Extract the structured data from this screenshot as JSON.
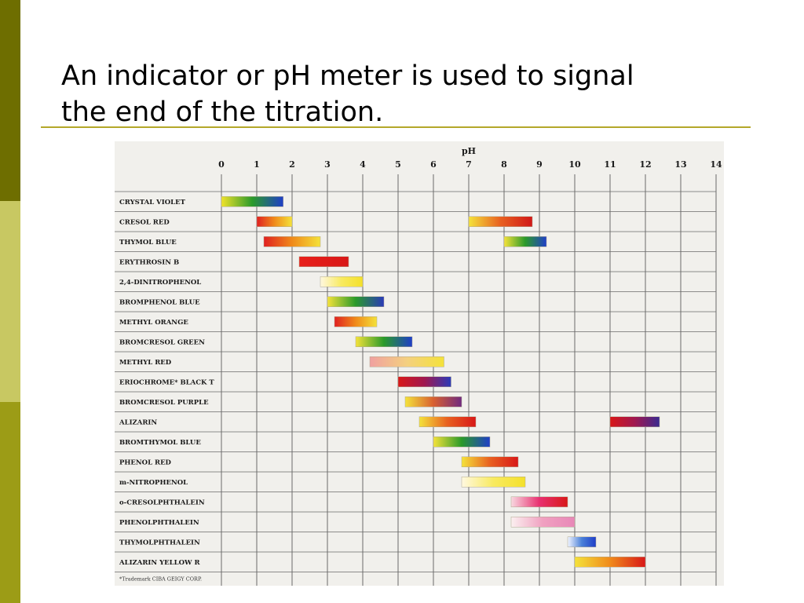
{
  "slide": {
    "title": "An indicator or pH meter is used to signal\nthe end of the titration."
  },
  "colors": {
    "sidebar": [
      "#6e6e00",
      "#c8c862",
      "#9c9c16"
    ],
    "rule": "#b4a82a",
    "grid": "#6a6a6a",
    "photo_bg": "#f1f0ec"
  },
  "chart_data": {
    "type": "range-bar",
    "xlabel": "pH",
    "xlim": [
      0,
      14
    ],
    "x_ticks": [
      0,
      1,
      2,
      3,
      4,
      5,
      6,
      7,
      8,
      9,
      10,
      11,
      12,
      13,
      14
    ],
    "footnote": "*Trademark CIBA GEIGY CORP.",
    "indicators": [
      {
        "name": "CRYSTAL VIOLET",
        "ranges": [
          {
            "from": 0.0,
            "to": 1.75,
            "colors": [
              "#f0e22a",
              "#2a9a2a",
              "#1f3ec8"
            ]
          }
        ]
      },
      {
        "name": "CRESOL RED",
        "ranges": [
          {
            "from": 1.0,
            "to": 2.0,
            "colors": [
              "#e02020",
              "#f08a1a",
              "#f4e23a"
            ]
          },
          {
            "from": 7.0,
            "to": 8.8,
            "colors": [
              "#f4e23a",
              "#e86020",
              "#d01818"
            ]
          }
        ]
      },
      {
        "name": "THYMOL BLUE",
        "ranges": [
          {
            "from": 1.2,
            "to": 2.8,
            "colors": [
              "#e02020",
              "#f08a1a",
              "#f4e23a"
            ]
          },
          {
            "from": 8.0,
            "to": 9.2,
            "colors": [
              "#f4e23a",
              "#2a9a2a",
              "#1f3ec8"
            ]
          }
        ]
      },
      {
        "name": "ERYTHROSIN B",
        "ranges": [
          {
            "from": 2.2,
            "to": 3.6,
            "colors": [
              "#e8201a",
              "#d81818"
            ]
          }
        ]
      },
      {
        "name": "2,4-DINITROPHENOL",
        "ranges": [
          {
            "from": 2.8,
            "to": 4.0,
            "colors": [
              "#fff8e0",
              "#f8ea60",
              "#f4e02a"
            ]
          }
        ]
      },
      {
        "name": "BROMPHENOL BLUE",
        "ranges": [
          {
            "from": 3.0,
            "to": 4.6,
            "colors": [
              "#f4e23a",
              "#2a9a2a",
              "#2a3ab8"
            ]
          }
        ]
      },
      {
        "name": "METHYL ORANGE",
        "ranges": [
          {
            "from": 3.2,
            "to": 4.4,
            "colors": [
              "#e02020",
              "#f08a1a",
              "#f4e23a"
            ]
          }
        ]
      },
      {
        "name": "BROMCRESOL GREEN",
        "ranges": [
          {
            "from": 3.8,
            "to": 5.4,
            "colors": [
              "#f4e23a",
              "#2a9a2a",
              "#1f3ec8"
            ]
          }
        ]
      },
      {
        "name": "METHYL RED",
        "ranges": [
          {
            "from": 4.2,
            "to": 6.3,
            "colors": [
              "#f0a0a0",
              "#f4d080",
              "#f4e23a"
            ]
          }
        ]
      },
      {
        "name": "ERIOCHROME* BLACK T",
        "ranges": [
          {
            "from": 5.0,
            "to": 6.5,
            "colors": [
              "#d81818",
              "#a01850",
              "#2a3ab8"
            ]
          }
        ]
      },
      {
        "name": "BROMCRESOL PURPLE",
        "ranges": [
          {
            "from": 5.2,
            "to": 6.8,
            "colors": [
              "#f4e23a",
              "#d86030",
              "#702a80"
            ]
          }
        ]
      },
      {
        "name": "ALIZARIN",
        "ranges": [
          {
            "from": 5.6,
            "to": 7.2,
            "colors": [
              "#f4e23a",
              "#e86020",
              "#d81818"
            ]
          },
          {
            "from": 11.0,
            "to": 12.4,
            "colors": [
              "#d81818",
              "#a01850",
              "#3a2a90"
            ]
          }
        ]
      },
      {
        "name": "BROMTHYMOL BLUE",
        "ranges": [
          {
            "from": 6.0,
            "to": 7.6,
            "colors": [
              "#f4e23a",
              "#2a9a2a",
              "#1f3ec8"
            ]
          }
        ]
      },
      {
        "name": "PHENOL RED",
        "ranges": [
          {
            "from": 6.8,
            "to": 8.4,
            "colors": [
              "#f4e23a",
              "#e86020",
              "#d81818"
            ]
          }
        ]
      },
      {
        "name": "m-NITROPHENOL",
        "ranges": [
          {
            "from": 6.8,
            "to": 8.6,
            "colors": [
              "#fff8e0",
              "#f8ea60",
              "#f4e02a"
            ]
          }
        ]
      },
      {
        "name": "o-CRESOLPHTHALEIN",
        "ranges": [
          {
            "from": 8.2,
            "to": 9.8,
            "colors": [
              "#f8d8e0",
              "#e83070",
              "#d81818"
            ]
          }
        ]
      },
      {
        "name": "PHENOLPHTHALEIN",
        "ranges": [
          {
            "from": 8.2,
            "to": 10.0,
            "colors": [
              "#fbf0f0",
              "#f0a0c0",
              "#e888b8"
            ]
          }
        ]
      },
      {
        "name": "THYMOLPHTHALEIN",
        "ranges": [
          {
            "from": 9.8,
            "to": 10.6,
            "colors": [
              "#f0f4ff",
              "#4a80d8",
              "#1f3ec8"
            ]
          }
        ]
      },
      {
        "name": "ALIZARIN YELLOW R",
        "ranges": [
          {
            "from": 10.0,
            "to": 12.0,
            "colors": [
              "#f4e23a",
              "#f08a1a",
              "#d81818"
            ]
          }
        ]
      }
    ]
  }
}
